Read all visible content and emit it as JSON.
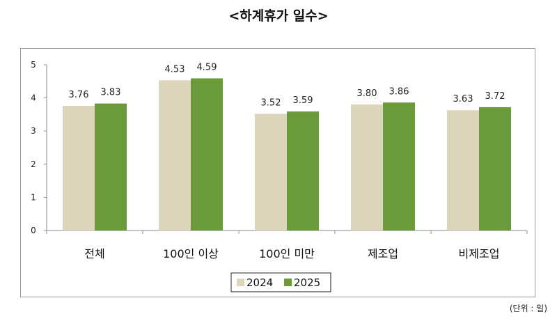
{
  "chart_data": {
    "type": "bar",
    "title": "<하계휴가 일수>",
    "unit_note": "(단위 : 일)",
    "categories": [
      "전체",
      "100인 이상",
      "100인 미만",
      "제조업",
      "비제조업"
    ],
    "series": [
      {
        "name": "2024",
        "values": [
          3.76,
          4.53,
          3.52,
          3.8,
          3.63
        ],
        "labels": [
          "3.76",
          "4.53",
          "3.52",
          "3.80",
          "3.63"
        ],
        "color": "#ddd5bb"
      },
      {
        "name": "2025",
        "values": [
          3.83,
          4.59,
          3.59,
          3.86,
          3.72
        ],
        "labels": [
          "3.83",
          "4.59",
          "3.59",
          "3.86",
          "3.72"
        ],
        "color": "#6a9a3a"
      }
    ],
    "ylim": [
      0,
      5
    ],
    "yticks": [
      "0",
      "1",
      "2",
      "3",
      "4",
      "5"
    ],
    "grid": false,
    "legend_position": "bottom-center"
  }
}
